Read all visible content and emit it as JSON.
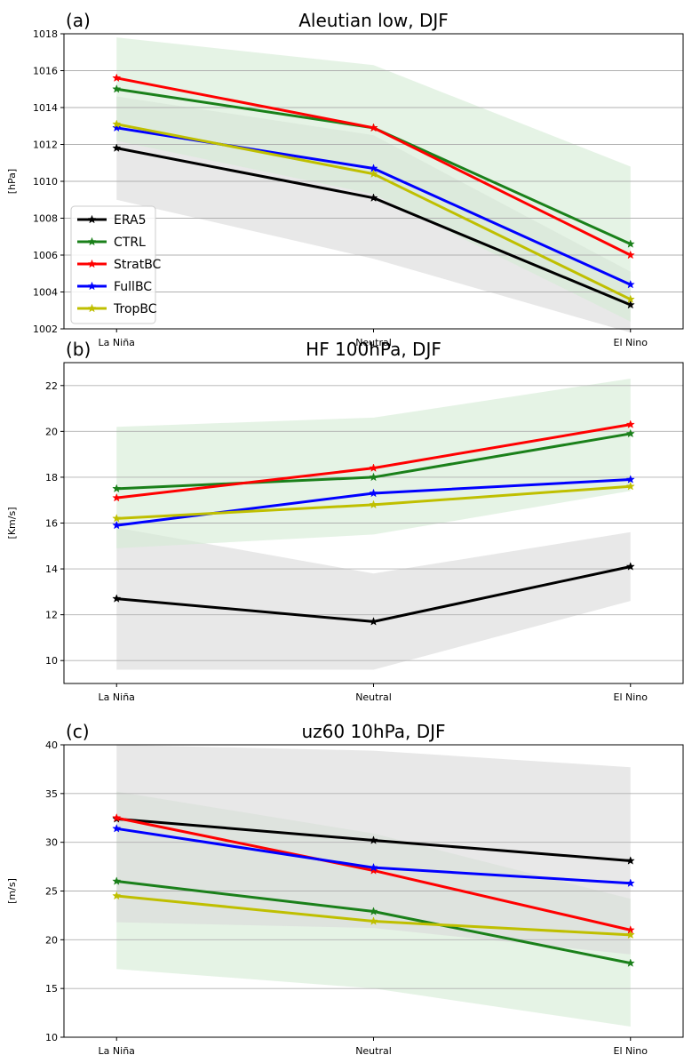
{
  "colors": {
    "ERA5": "#000000",
    "CTRL": "#1a801a",
    "StratBC": "#ff0000",
    "FullBC": "#0000ff",
    "TropBC": "#bfbf00",
    "shade_gray": "#d9d9d9",
    "shade_green": "#d4ebd4"
  },
  "legend": [
    "ERA5",
    "CTRL",
    "StratBC",
    "FullBC",
    "TropBC"
  ],
  "chart_data": [
    {
      "type": "line",
      "panel_label": "(a)",
      "title": "Aleutian low, DJF",
      "ylabel": "[hPa]",
      "categories": [
        "La Niña",
        "Neutral",
        "El Nino"
      ],
      "ylim": [
        1002,
        1018
      ],
      "yticks": [
        1002,
        1004,
        1006,
        1008,
        1010,
        1012,
        1014,
        1016,
        1018
      ],
      "grid": true,
      "legend_position": "lower-left",
      "bands": [
        {
          "name": "ERA5",
          "color": "shade_gray",
          "lower": [
            1009.0,
            1005.8,
            1001.8
          ],
          "upper": [
            1014.6,
            1012.5,
            1005.1
          ]
        },
        {
          "name": "CTRL",
          "color": "shade_green",
          "lower": [
            1012.2,
            1009.3,
            1002.4
          ],
          "upper": [
            1017.8,
            1016.3,
            1010.8
          ]
        }
      ],
      "series": [
        {
          "name": "ERA5",
          "values": [
            1011.8,
            1009.1,
            1003.3
          ]
        },
        {
          "name": "CTRL",
          "values": [
            1015.0,
            1012.9,
            1006.6
          ]
        },
        {
          "name": "StratBC",
          "values": [
            1015.6,
            1012.9,
            1006.0
          ]
        },
        {
          "name": "FullBC",
          "values": [
            1012.9,
            1010.7,
            1004.4
          ]
        },
        {
          "name": "TropBC",
          "values": [
            1013.1,
            1010.4,
            1003.6
          ]
        }
      ]
    },
    {
      "type": "line",
      "panel_label": "(b)",
      "title": "HF 100hPa, DJF",
      "ylabel": "[Km/s]",
      "categories": [
        "La Niña",
        "Neutral",
        "El Nino"
      ],
      "ylim": [
        9.0,
        23.0
      ],
      "yticks": [
        10,
        12,
        14,
        16,
        18,
        20,
        22
      ],
      "grid": true,
      "bands": [
        {
          "name": "ERA5",
          "color": "shade_gray",
          "lower": [
            9.6,
            9.6,
            12.6
          ],
          "upper": [
            15.8,
            13.8,
            15.6
          ]
        },
        {
          "name": "CTRL",
          "color": "shade_green",
          "lower": [
            14.9,
            15.5,
            17.4
          ],
          "upper": [
            20.2,
            20.6,
            22.3
          ]
        }
      ],
      "series": [
        {
          "name": "ERA5",
          "values": [
            12.7,
            11.7,
            14.1
          ]
        },
        {
          "name": "CTRL",
          "values": [
            17.5,
            18.0,
            19.9
          ]
        },
        {
          "name": "StratBC",
          "values": [
            17.1,
            18.4,
            20.3
          ]
        },
        {
          "name": "FullBC",
          "values": [
            15.9,
            17.3,
            17.9
          ]
        },
        {
          "name": "TropBC",
          "values": [
            16.2,
            16.8,
            17.6
          ]
        }
      ]
    },
    {
      "type": "line",
      "panel_label": "(c)",
      "title": "uz60 10hPa, DJF",
      "ylabel": "[m/s]",
      "categories": [
        "La Niña",
        "Neutral",
        "El Nino"
      ],
      "ylim": [
        10,
        40
      ],
      "yticks": [
        10,
        15,
        20,
        25,
        30,
        35,
        40
      ],
      "grid": true,
      "bands": [
        {
          "name": "CTRL",
          "color": "shade_green",
          "lower": [
            17.0,
            15.0,
            11.1
          ],
          "upper": [
            35.2,
            30.9,
            24.2
          ]
        },
        {
          "name": "ERA5",
          "color": "shade_gray",
          "lower": [
            21.8,
            21.2,
            18.5
          ],
          "upper": [
            40.0,
            39.4,
            37.7
          ]
        }
      ],
      "series": [
        {
          "name": "ERA5",
          "values": [
            32.4,
            30.2,
            28.1
          ]
        },
        {
          "name": "CTRL",
          "values": [
            26.0,
            22.9,
            17.6
          ]
        },
        {
          "name": "StratBC",
          "values": [
            32.5,
            27.1,
            21.0
          ]
        },
        {
          "name": "FullBC",
          "values": [
            31.4,
            27.4,
            25.8
          ]
        },
        {
          "name": "TropBC",
          "values": [
            24.5,
            21.9,
            20.5
          ]
        }
      ]
    }
  ]
}
